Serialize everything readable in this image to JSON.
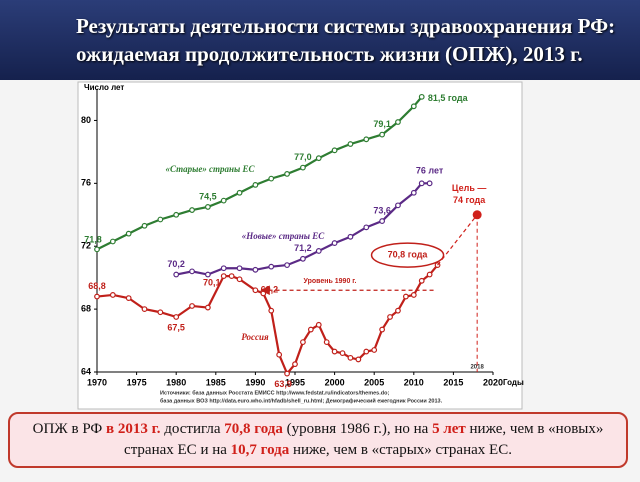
{
  "header": {
    "title_lines": [
      "Результаты деятельности системы здравоохранения РФ:",
      "ожидаемая продолжительность жизни (ОПЖ), 2013 г."
    ]
  },
  "chart_data": {
    "type": "line",
    "y_label": "Число лет",
    "x_label": "Годы",
    "xlim": [
      1970,
      2020
    ],
    "xticks": [
      1970,
      1975,
      1980,
      1985,
      1990,
      1995,
      2000,
      2005,
      2010,
      2015,
      2020
    ],
    "ylim": [
      64,
      82
    ],
    "yticks": [
      64,
      68,
      72,
      76,
      80
    ],
    "grid": false,
    "series": [
      {
        "name": "«Старые» страны ЕС",
        "color": "#2e7d32",
        "x": [
          1970,
          1972,
          1974,
          1976,
          1978,
          1980,
          1982,
          1984,
          1986,
          1988,
          1990,
          1992,
          1994,
          1996,
          1998,
          2000,
          2002,
          2004,
          2006,
          2008,
          2010,
          2011
        ],
        "values": [
          71.8,
          72.3,
          72.8,
          73.3,
          73.7,
          74.0,
          74.3,
          74.5,
          74.9,
          75.4,
          75.9,
          76.3,
          76.6,
          77.0,
          77.6,
          78.1,
          78.5,
          78.8,
          79.1,
          79.9,
          80.9,
          81.5
        ],
        "value_labels": [
          "71,8",
          null,
          null,
          null,
          null,
          null,
          null,
          "74,5",
          null,
          null,
          null,
          null,
          null,
          "77,0",
          null,
          null,
          null,
          null,
          "79,1",
          null,
          null,
          "81,5 года"
        ]
      },
      {
        "name": "«Новые» страны ЕС",
        "color": "#5b2a86",
        "x": [
          1980,
          1982,
          1984,
          1986,
          1988,
          1990,
          1992,
          1994,
          1996,
          1998,
          2000,
          2002,
          2004,
          2006,
          2008,
          2010,
          2011,
          2012
        ],
        "values": [
          70.2,
          70.4,
          70.2,
          70.6,
          70.6,
          70.5,
          70.7,
          70.8,
          71.2,
          71.7,
          72.2,
          72.6,
          73.2,
          73.6,
          74.6,
          75.4,
          76.0,
          76.0
        ],
        "value_labels": [
          "70,2",
          null,
          null,
          null,
          null,
          null,
          null,
          null,
          "71,2",
          null,
          null,
          null,
          null,
          "73,6",
          null,
          null,
          null,
          "76 лет"
        ]
      },
      {
        "name": "Россия",
        "color": "#c0201a",
        "x": [
          1970,
          1972,
          1974,
          1976,
          1978,
          1980,
          1982,
          1984,
          1986,
          1987,
          1988,
          1990,
          1991,
          1992,
          1993,
          1994,
          1995,
          1996,
          1997,
          1998,
          1999,
          2000,
          2001,
          2002,
          2003,
          2004,
          2005,
          2006,
          2007,
          2008,
          2009,
          2010,
          2011,
          2012,
          2013
        ],
        "values": [
          68.8,
          68.9,
          68.7,
          68.0,
          67.8,
          67.5,
          68.2,
          68.1,
          70.1,
          70.1,
          69.9,
          69.2,
          69.0,
          67.9,
          65.1,
          63.9,
          64.5,
          65.9,
          66.7,
          67.0,
          65.9,
          65.3,
          65.2,
          64.9,
          64.8,
          65.3,
          65.4,
          66.7,
          67.5,
          67.9,
          68.8,
          68.9,
          69.8,
          70.2,
          70.8
        ],
        "value_labels": [
          "68,8",
          null,
          null,
          null,
          null,
          "67,5",
          null,
          null,
          "70,1",
          null,
          null,
          "69,2",
          null,
          null,
          null,
          "63,9",
          null,
          null,
          null,
          null,
          null,
          null,
          null,
          null,
          null,
          null,
          null,
          null,
          null,
          null,
          null,
          null,
          null,
          null,
          "70,8 года"
        ]
      }
    ],
    "target": {
      "x": 2018,
      "value": 74,
      "label_lines": [
        "Цель —",
        "74 года"
      ],
      "color": "#d0201a"
    },
    "reference": {
      "label": "Уровень 1990 г."
    }
  },
  "sources": [
    "Источники: база данных Росстата ЕМИСС http://www.fedstat.ru/indicators/themes.do;",
    "база данных ВОЗ http://data.euro.who.int/hfadb/shell_ru.html; Демографический ежегодник России 2013."
  ],
  "summary": [
    {
      "text": "ОПЖ в РФ ",
      "highlight": false
    },
    {
      "text": "в 2013 г.",
      "highlight": true
    },
    {
      "text": " достигла ",
      "highlight": false
    },
    {
      "text": "70,8 года",
      "highlight": true
    },
    {
      "text": " (уровня 1986 г.), но на ",
      "highlight": false
    },
    {
      "text": "5 лет",
      "highlight": true
    },
    {
      "text": " ниже, чем в «новых» странах ЕС и на ",
      "highlight": false
    },
    {
      "text": "10,7 года",
      "highlight": true
    },
    {
      "text": " ниже, чем в «старых» странах ЕС.",
      "highlight": false
    }
  ]
}
